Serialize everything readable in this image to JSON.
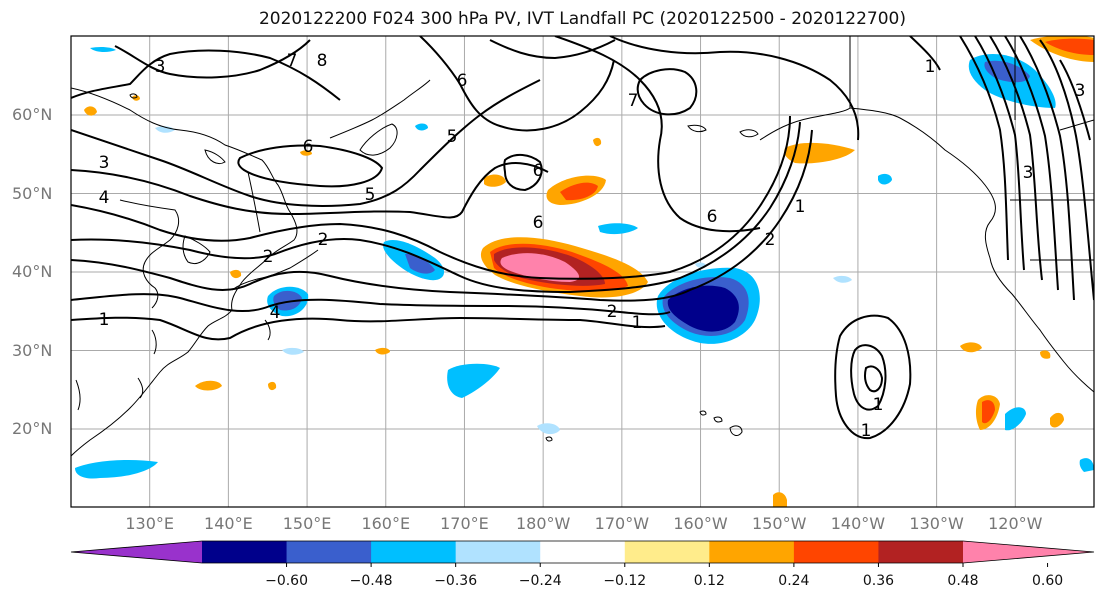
{
  "title": "2020122200 F024 300 hPa PV, IVT Landfall PC (2020122500 - 2020122700)",
  "lat_labels": [
    {
      "text": "60°N",
      "lat": 60
    },
    {
      "text": "50°N",
      "lat": 50
    },
    {
      "text": "40°N",
      "lat": 40
    },
    {
      "text": "30°N",
      "lat": 30
    },
    {
      "text": "20°N",
      "lat": 20
    }
  ],
  "lon_labels": [
    {
      "text": "130°E",
      "lon": 130
    },
    {
      "text": "140°E",
      "lon": 140
    },
    {
      "text": "150°E",
      "lon": 150
    },
    {
      "text": "160°E",
      "lon": 160
    },
    {
      "text": "170°E",
      "lon": 170
    },
    {
      "text": "180°W",
      "lon": 180
    },
    {
      "text": "170°W",
      "lon": 190
    },
    {
      "text": "160°W",
      "lon": 200
    },
    {
      "text": "150°W",
      "lon": 210
    },
    {
      "text": "140°W",
      "lon": 220
    },
    {
      "text": "130°W",
      "lon": 230
    },
    {
      "text": "120°W",
      "lon": 240
    }
  ],
  "colorbar": {
    "colors": [
      "#9932cc",
      "#00008b",
      "#3a5fcd",
      "#00bfff",
      "#b0e2ff",
      "#ffffff",
      "#ffec8b",
      "#ffa500",
      "#ff4500",
      "#b22222",
      "#ff82ab"
    ],
    "labels": [
      "−0.60",
      "−0.48",
      "−0.36",
      "−0.24",
      "−0.12",
      "0.12",
      "0.24",
      "0.36",
      "0.48",
      "0.60"
    ]
  },
  "contour_labels": [
    "3",
    "8",
    "7",
    "6",
    "6",
    "6",
    "5",
    "5",
    "4",
    "3",
    "2",
    "2",
    "2",
    "1",
    "1",
    "1",
    "4",
    "7",
    "6",
    "6",
    "1",
    "3",
    "3",
    "2",
    "1",
    "1"
  ],
  "colors": {
    "land_outline": "#000000",
    "grid": "#aaaaaa",
    "contour": "#000000",
    "axis_label": "#777777"
  }
}
